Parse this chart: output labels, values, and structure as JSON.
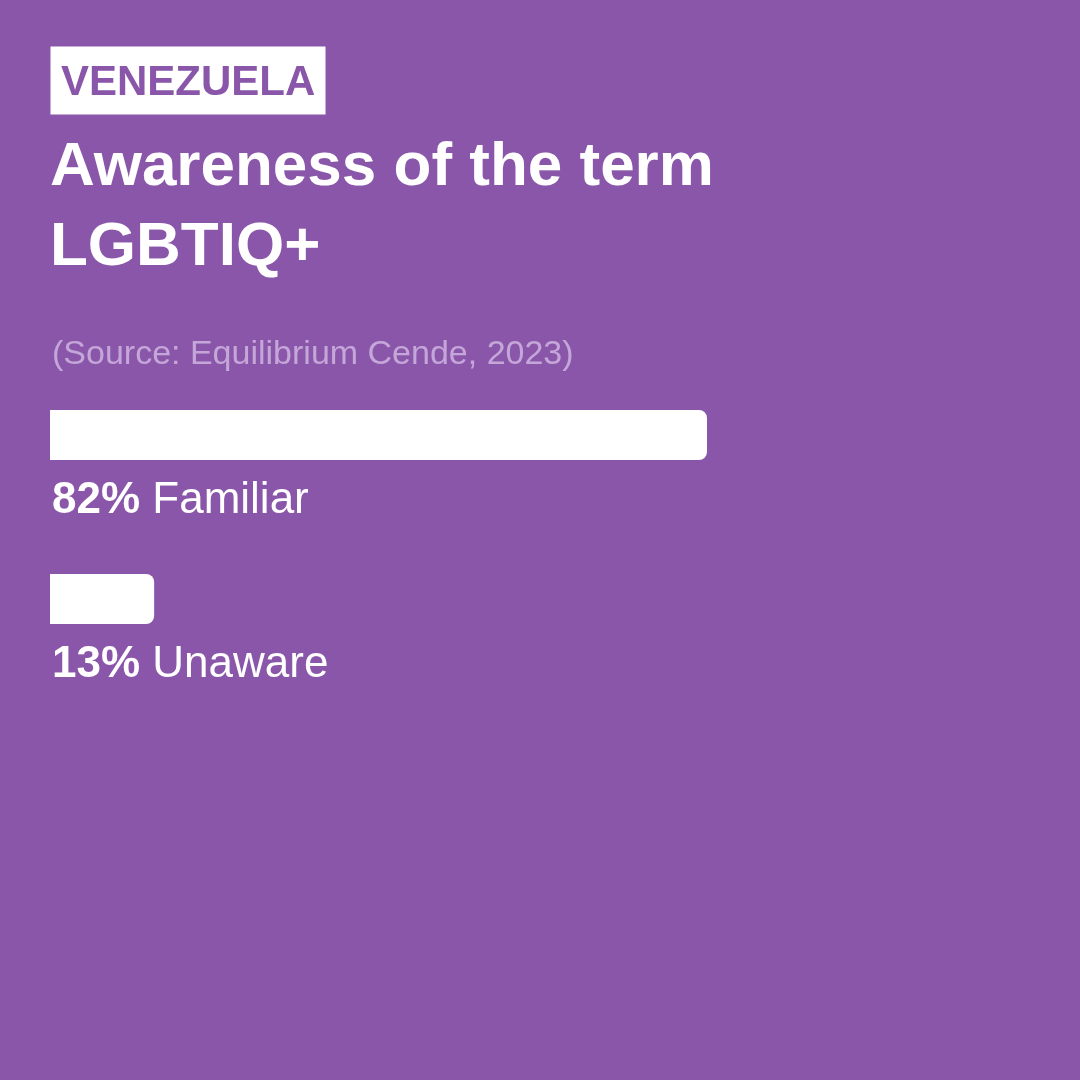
{
  "chart_data": {
    "type": "bar",
    "orientation": "horizontal",
    "title": "Awareness of the term LGBTIQ+",
    "annotations": [
      "VENEZUELA",
      "(Source: Equilibrium Cende, 2023)"
    ],
    "categories": [
      "Familiar",
      "Unaware"
    ],
    "values": [
      82,
      13
    ],
    "value_labels": [
      "82%",
      "13%"
    ],
    "color": "#ffffff"
  }
}
